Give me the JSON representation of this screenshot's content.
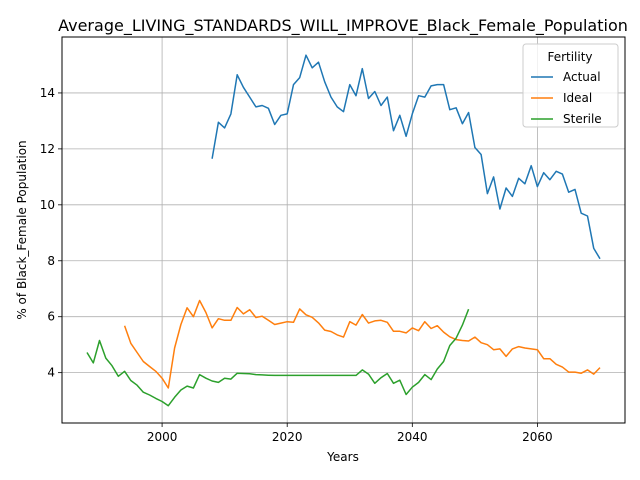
{
  "chart_data": {
    "type": "line",
    "title": "Average_LIVING_STANDARDS_WILL_IMPROVE_Black_Female_Population",
    "xlabel": "Years",
    "ylabel": "% of Black_Female Population",
    "xlim": [
      1984,
      2074
    ],
    "ylim": [
      2.2,
      16.0
    ],
    "xticks": [
      2000,
      2020,
      2040,
      2060
    ],
    "yticks": [
      4,
      6,
      8,
      10,
      12,
      14
    ],
    "grid": true,
    "legend": {
      "title": "Fertility",
      "placement": "top-right"
    },
    "series": [
      {
        "name": "Actual",
        "color": "#1f77b4",
        "x": [
          2008,
          2009,
          2010,
          2011,
          2012,
          2013,
          2014,
          2015,
          2016,
          2017,
          2018,
          2019,
          2020,
          2021,
          2022,
          2023,
          2024,
          2025,
          2026,
          2027,
          2028,
          2029,
          2030,
          2031,
          2032,
          2033,
          2034,
          2035,
          2036,
          2037,
          2038,
          2039,
          2040,
          2041,
          2042,
          2043,
          2044,
          2045,
          2046,
          2047,
          2048,
          2049,
          2050,
          2051,
          2052,
          2053,
          2054,
          2055,
          2056,
          2057,
          2058,
          2059,
          2060,
          2061,
          2062,
          2063,
          2064,
          2065,
          2066,
          2067,
          2068,
          2069,
          2070
        ],
        "y": [
          11.65,
          12.95,
          12.75,
          13.25,
          14.65,
          14.2,
          13.85,
          13.5,
          13.55,
          13.45,
          12.87,
          13.2,
          13.25,
          14.3,
          14.55,
          15.35,
          14.9,
          15.1,
          14.4,
          13.85,
          13.5,
          13.33,
          14.3,
          13.9,
          14.87,
          13.8,
          14.05,
          13.55,
          13.85,
          12.65,
          13.2,
          12.45,
          13.25,
          13.9,
          13.85,
          14.25,
          14.3,
          14.3,
          13.4,
          13.47,
          12.9,
          13.3,
          12.05,
          11.8,
          10.4,
          11.0,
          9.85,
          10.6,
          10.3,
          10.95,
          10.75,
          11.4,
          10.65,
          11.15,
          10.9,
          11.2,
          11.1,
          10.45,
          10.55,
          9.7,
          9.6,
          8.45,
          8.07
        ]
      },
      {
        "name": "Ideal",
        "color": "#ff7f0e",
        "x": [
          1994,
          1995,
          1996,
          1997,
          1998,
          1999,
          2000,
          2001,
          2002,
          2003,
          2004,
          2005,
          2006,
          2007,
          2008,
          2009,
          2010,
          2011,
          2012,
          2013,
          2014,
          2015,
          2016,
          2017,
          2018,
          2019,
          2020,
          2021,
          2022,
          2023,
          2024,
          2025,
          2026,
          2027,
          2028,
          2029,
          2030,
          2031,
          2032,
          2033,
          2034,
          2035,
          2036,
          2037,
          2038,
          2039,
          2040,
          2041,
          2042,
          2043,
          2044,
          2045,
          2046,
          2047,
          2048,
          2049,
          2050,
          2051,
          2052,
          2053,
          2054,
          2055,
          2056,
          2057,
          2058,
          2059,
          2060,
          2061,
          2062,
          2063,
          2064,
          2065,
          2066,
          2067,
          2068,
          2069,
          2070
        ],
        "y": [
          5.68,
          5.05,
          4.72,
          4.4,
          4.22,
          4.05,
          3.8,
          3.45,
          4.88,
          5.72,
          6.32,
          6.0,
          6.58,
          6.15,
          5.6,
          5.93,
          5.87,
          5.87,
          6.33,
          6.1,
          6.25,
          5.97,
          6.02,
          5.87,
          5.72,
          5.77,
          5.82,
          5.8,
          6.28,
          6.07,
          5.98,
          5.78,
          5.52,
          5.47,
          5.35,
          5.27,
          5.82,
          5.7,
          6.08,
          5.77,
          5.85,
          5.87,
          5.8,
          5.48,
          5.48,
          5.42,
          5.6,
          5.5,
          5.82,
          5.58,
          5.68,
          5.45,
          5.28,
          5.18,
          5.15,
          5.13,
          5.27,
          5.07,
          5.0,
          4.82,
          4.85,
          4.58,
          4.85,
          4.93,
          4.88,
          4.85,
          4.82,
          4.5,
          4.5,
          4.3,
          4.2,
          4.02,
          4.02,
          3.98,
          4.1,
          3.95,
          4.18
        ]
      },
      {
        "name": "Sterile",
        "color": "#2ca02c",
        "x": [
          1988,
          1989,
          1990,
          1991,
          1992,
          1993,
          1994,
          1995,
          1996,
          1997,
          1998,
          1999,
          2000,
          2001,
          2002,
          2003,
          2004,
          2005,
          2006,
          2007,
          2008,
          2009,
          2010,
          2011,
          2012,
          2013,
          2014,
          2015,
          2016,
          2017,
          2018,
          2019,
          2020,
          2021,
          2022,
          2023,
          2024,
          2025,
          2026,
          2027,
          2028,
          2029,
          2030,
          2031,
          2032,
          2033,
          2034,
          2035,
          2036,
          2037,
          2038,
          2039,
          2040,
          2041,
          2042,
          2043,
          2044,
          2045,
          2046,
          2047,
          2048,
          2049
        ],
        "y": [
          4.72,
          4.35,
          5.15,
          4.52,
          4.25,
          3.87,
          4.05,
          3.72,
          3.55,
          3.3,
          3.2,
          3.08,
          2.97,
          2.82,
          3.12,
          3.38,
          3.52,
          3.45,
          3.93,
          3.8,
          3.7,
          3.65,
          3.8,
          3.77,
          3.98,
          3.97,
          3.96,
          3.93,
          3.92,
          3.91,
          3.9,
          3.9,
          3.9,
          3.9,
          3.9,
          3.9,
          3.9,
          3.9,
          3.9,
          3.9,
          3.9,
          3.9,
          3.9,
          3.9,
          4.1,
          3.95,
          3.62,
          3.82,
          3.97,
          3.62,
          3.73,
          3.22,
          3.48,
          3.65,
          3.93,
          3.75,
          4.13,
          4.4,
          4.97,
          5.23,
          5.7,
          6.27
        ]
      }
    ]
  }
}
